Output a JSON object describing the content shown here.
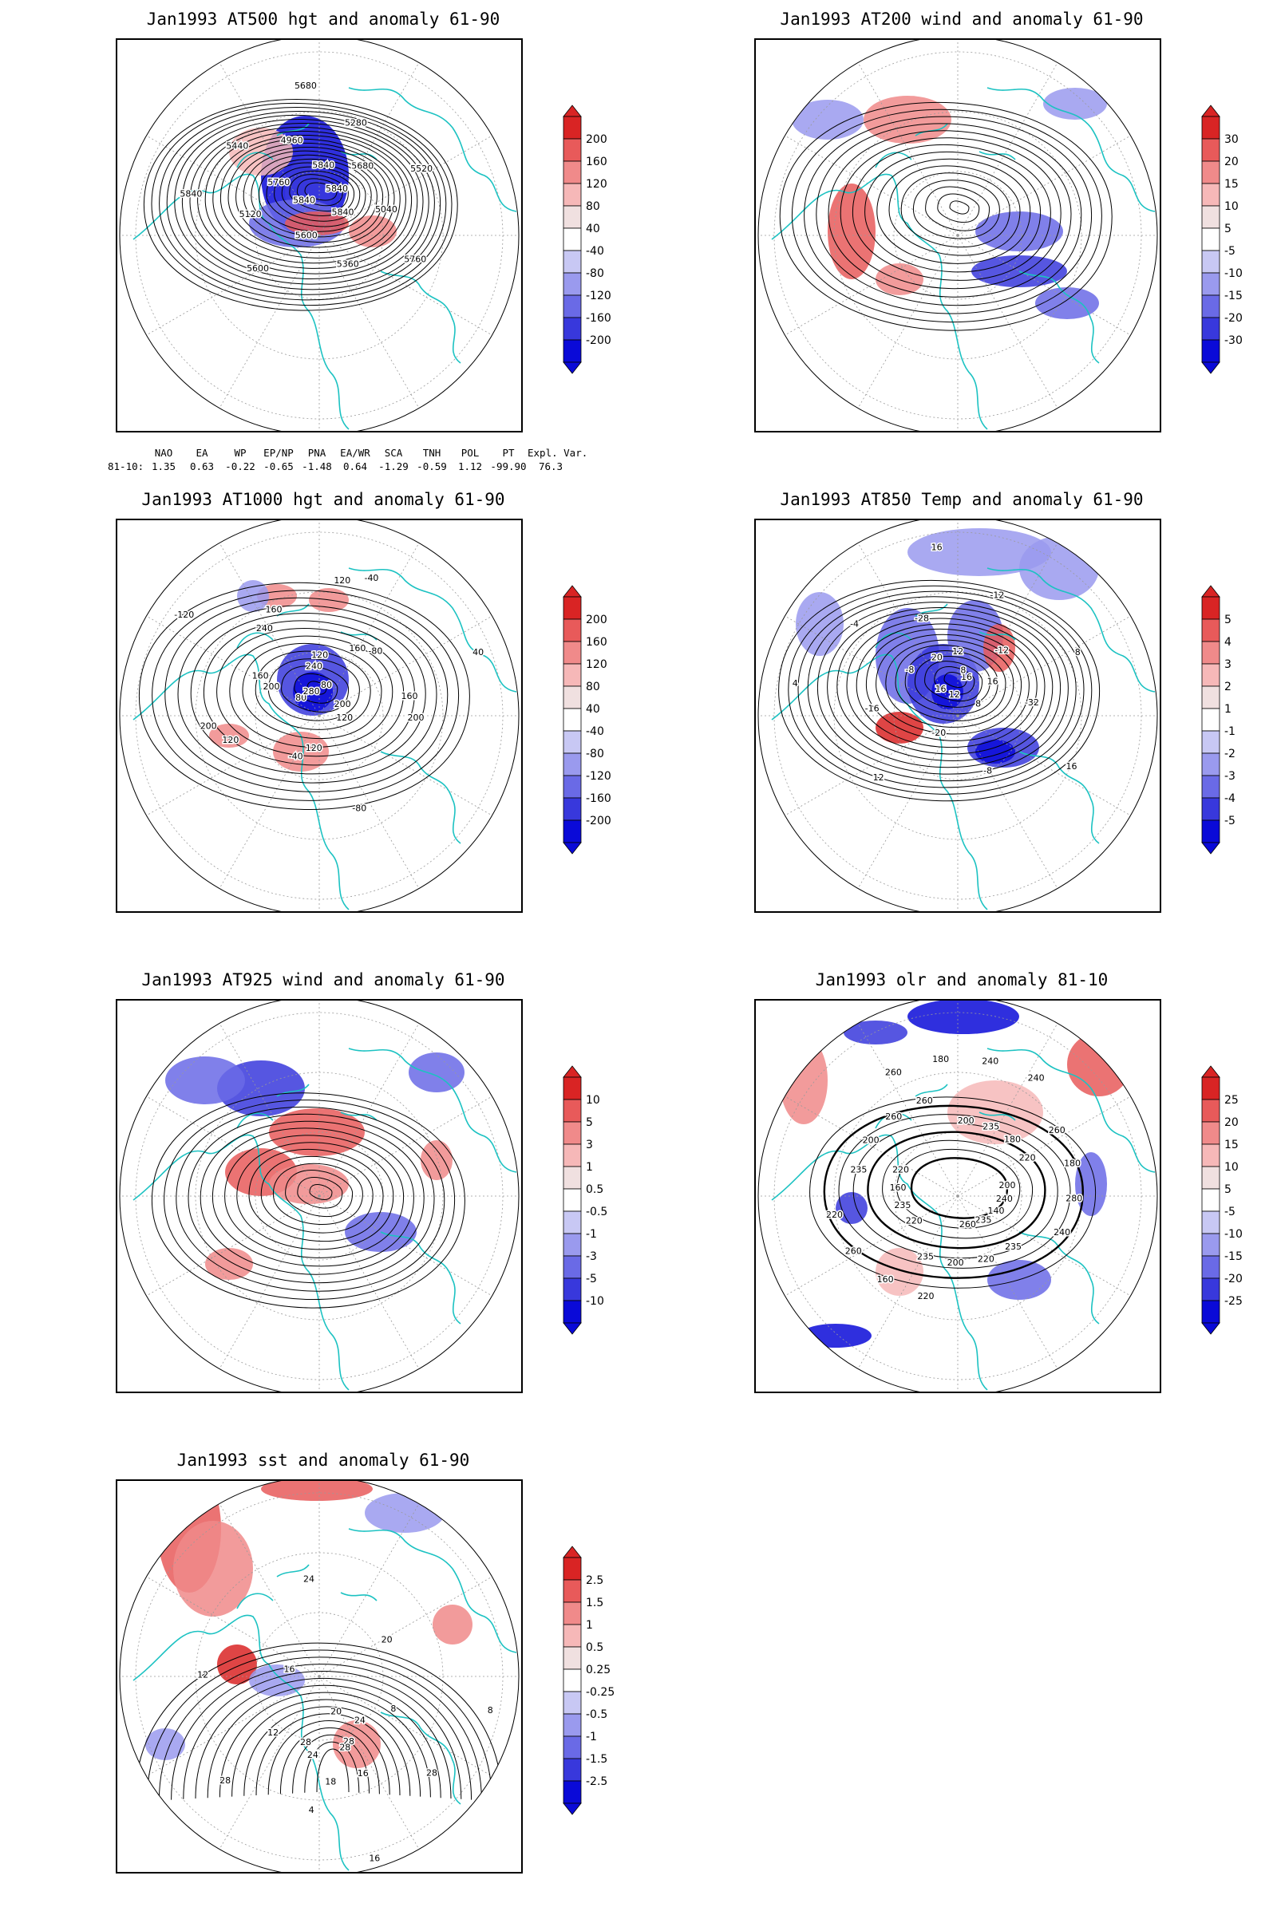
{
  "panels": [
    {
      "id": "z500",
      "title": "Jan1993 AT500 hgt and anomaly 61-90",
      "field": "height-anomaly",
      "contour_labels": [
        "5840",
        "5840",
        "5840",
        "5840",
        "5760",
        "5680",
        "5600",
        "4960",
        "5040",
        "5120",
        "5280",
        "5360",
        "5440",
        "5520",
        "5600",
        "5680",
        "5760",
        "5840"
      ],
      "colorbar": {
        "labels": [
          "200",
          "160",
          "120",
          "80",
          "40",
          "-40",
          "-80",
          "-120",
          "-160",
          "-200"
        ],
        "colors": [
          "#f0e0e0",
          "#f6b8b8",
          "#f08a8a",
          "#e85a5a",
          "#d92424",
          "#ffffff",
          "#c8c8f4",
          "#9a9aee",
          "#6a6ae6",
          "#3838dc",
          "#0a0ad8"
        ]
      }
    },
    {
      "id": "u200",
      "title": "Jan1993 AT200 wind and anomaly 61-90",
      "field": "wind-anomaly",
      "contour_labels": [],
      "colorbar": {
        "labels": [
          "30",
          "20",
          "15",
          "10",
          "5",
          "-5",
          "-10",
          "-15",
          "-20",
          "-30"
        ],
        "colors": [
          "#f0e0e0",
          "#f6b8b8",
          "#f08a8a",
          "#e85a5a",
          "#d92424",
          "#ffffff",
          "#c8c8f4",
          "#9a9aee",
          "#6a6ae6",
          "#3838dc",
          "#0a0ad8"
        ]
      }
    },
    {
      "id": "z1000",
      "title": "Jan1993 AT1000 hgt and anomaly 61-90",
      "field": "height-anomaly",
      "contour_labels": [
        "80",
        "80",
        "120",
        "120",
        "160",
        "-80",
        "-40",
        "160",
        "200",
        "200",
        "-40",
        "-80",
        "-120",
        "40",
        "280",
        "240",
        "200",
        "200",
        "160",
        "120",
        "240",
        "160",
        "120",
        "120"
      ],
      "colorbar": {
        "labels": [
          "200",
          "160",
          "120",
          "80",
          "40",
          "-40",
          "-80",
          "-120",
          "-160",
          "-200"
        ],
        "colors": [
          "#f0e0e0",
          "#f6b8b8",
          "#f08a8a",
          "#e85a5a",
          "#d92424",
          "#ffffff",
          "#c8c8f4",
          "#9a9aee",
          "#6a6ae6",
          "#3838dc",
          "#0a0ad8"
        ]
      }
    },
    {
      "id": "t850",
      "title": "Jan1993 AT850 Temp and anomaly 61-90",
      "field": "temperature-anomaly",
      "contour_labels": [
        "16",
        "16",
        "12",
        "8",
        "-8",
        "-12",
        "-20",
        "-28",
        "-32",
        "-16",
        "-12",
        "-8",
        "-4",
        "8",
        "12",
        "16",
        "16",
        "4",
        "8",
        "12",
        "20",
        "16"
      ],
      "colorbar": {
        "labels": [
          "5",
          "4",
          "3",
          "2",
          "1",
          "-1",
          "-2",
          "-3",
          "-4",
          "-5"
        ],
        "colors": [
          "#f0e0e0",
          "#f6b8b8",
          "#f08a8a",
          "#e85a5a",
          "#d92424",
          "#ffffff",
          "#c8c8f4",
          "#9a9aee",
          "#6a6ae6",
          "#3838dc",
          "#0a0ad8"
        ]
      }
    },
    {
      "id": "u925",
      "title": "Jan1993 AT925 wind and anomaly 61-90",
      "field": "wind-anomaly",
      "contour_labels": [],
      "colorbar": {
        "labels": [
          "10",
          "5",
          "3",
          "1",
          "0.5",
          "-0.5",
          "-1",
          "-3",
          "-5",
          "-10"
        ],
        "colors": [
          "#f0e0e0",
          "#f6b8b8",
          "#f08a8a",
          "#e85a5a",
          "#d92424",
          "#ffffff",
          "#c8c8f4",
          "#9a9aee",
          "#6a6ae6",
          "#3838dc",
          "#0a0ad8"
        ]
      }
    },
    {
      "id": "olr",
      "title": "Jan1993 olr and anomaly 81-10",
      "field": "olr-anomaly",
      "contour_labels": [
        "200",
        "220",
        "200",
        "235",
        "235",
        "260",
        "220",
        "260",
        "240",
        "235",
        "235",
        "220",
        "200",
        "180",
        "160",
        "180",
        "140",
        "160",
        "180",
        "200",
        "260",
        "280",
        "260",
        "240",
        "235",
        "220",
        "220",
        "235",
        "260",
        "240",
        "220",
        "240",
        "260"
      ],
      "colorbar": {
        "labels": [
          "25",
          "20",
          "15",
          "10",
          "5",
          "-5",
          "-10",
          "-15",
          "-20",
          "-25"
        ],
        "colors": [
          "#f0e0e0",
          "#f6b8b8",
          "#f08a8a",
          "#e85a5a",
          "#d92424",
          "#ffffff",
          "#c8c8f4",
          "#9a9aee",
          "#6a6ae6",
          "#3838dc",
          "#0a0ad8"
        ]
      }
    },
    {
      "id": "sst",
      "title": "Jan1993 sst and anomaly 61-90",
      "field": "sst-anomaly",
      "contour_labels": [
        "28",
        "24",
        "20",
        "16",
        "12",
        "8",
        "4",
        "16",
        "28",
        "28",
        "20",
        "16",
        "12",
        "8",
        "4",
        "24",
        "28",
        "28",
        "24",
        "18"
      ],
      "colorbar": {
        "labels": [
          "2.5",
          "1.5",
          "1",
          "0.5",
          "0.25",
          "-0.25",
          "-0.5",
          "-1",
          "-1.5",
          "-2.5"
        ],
        "colors": [
          "#f0e0e0",
          "#f6b8b8",
          "#f08a8a",
          "#e85a5a",
          "#d92424",
          "#ffffff",
          "#c8c8f4",
          "#9a9aee",
          "#6a6ae6",
          "#3838dc",
          "#0a0ad8"
        ]
      }
    }
  ],
  "teleconnections": {
    "headers": [
      "NAO",
      "EA",
      "WP",
      "EP/NP",
      "PNA",
      "EA/WR",
      "SCA",
      "TNH",
      "POL",
      "PT",
      "Expl. Var."
    ],
    "row_label": "81-10:",
    "values": [
      "1.35",
      "0.63",
      "-0.22",
      "-0.65",
      "-1.48",
      "0.64",
      "-1.29",
      "-0.59",
      "1.12",
      "-99.90",
      "76.3"
    ]
  }
}
